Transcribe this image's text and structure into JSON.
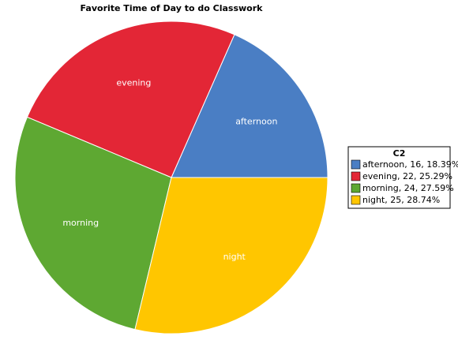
{
  "chart_data": {
    "type": "pie",
    "title": "Favorite Time of Day to do Classwork",
    "categories": [
      "afternoon",
      "evening",
      "morning",
      "night"
    ],
    "values": [
      16,
      22,
      24,
      25
    ],
    "colors": [
      "#4a7ec4",
      "#e32636",
      "#5ea832",
      "#ffc600"
    ],
    "legend_title": "C2",
    "legend_labels": [
      "afternoon, 16, 18.39%",
      "evening, 22, 25.29%",
      "morning, 24, 27.59%",
      "night, 25, 28.74%"
    ],
    "legend_position": "right"
  }
}
